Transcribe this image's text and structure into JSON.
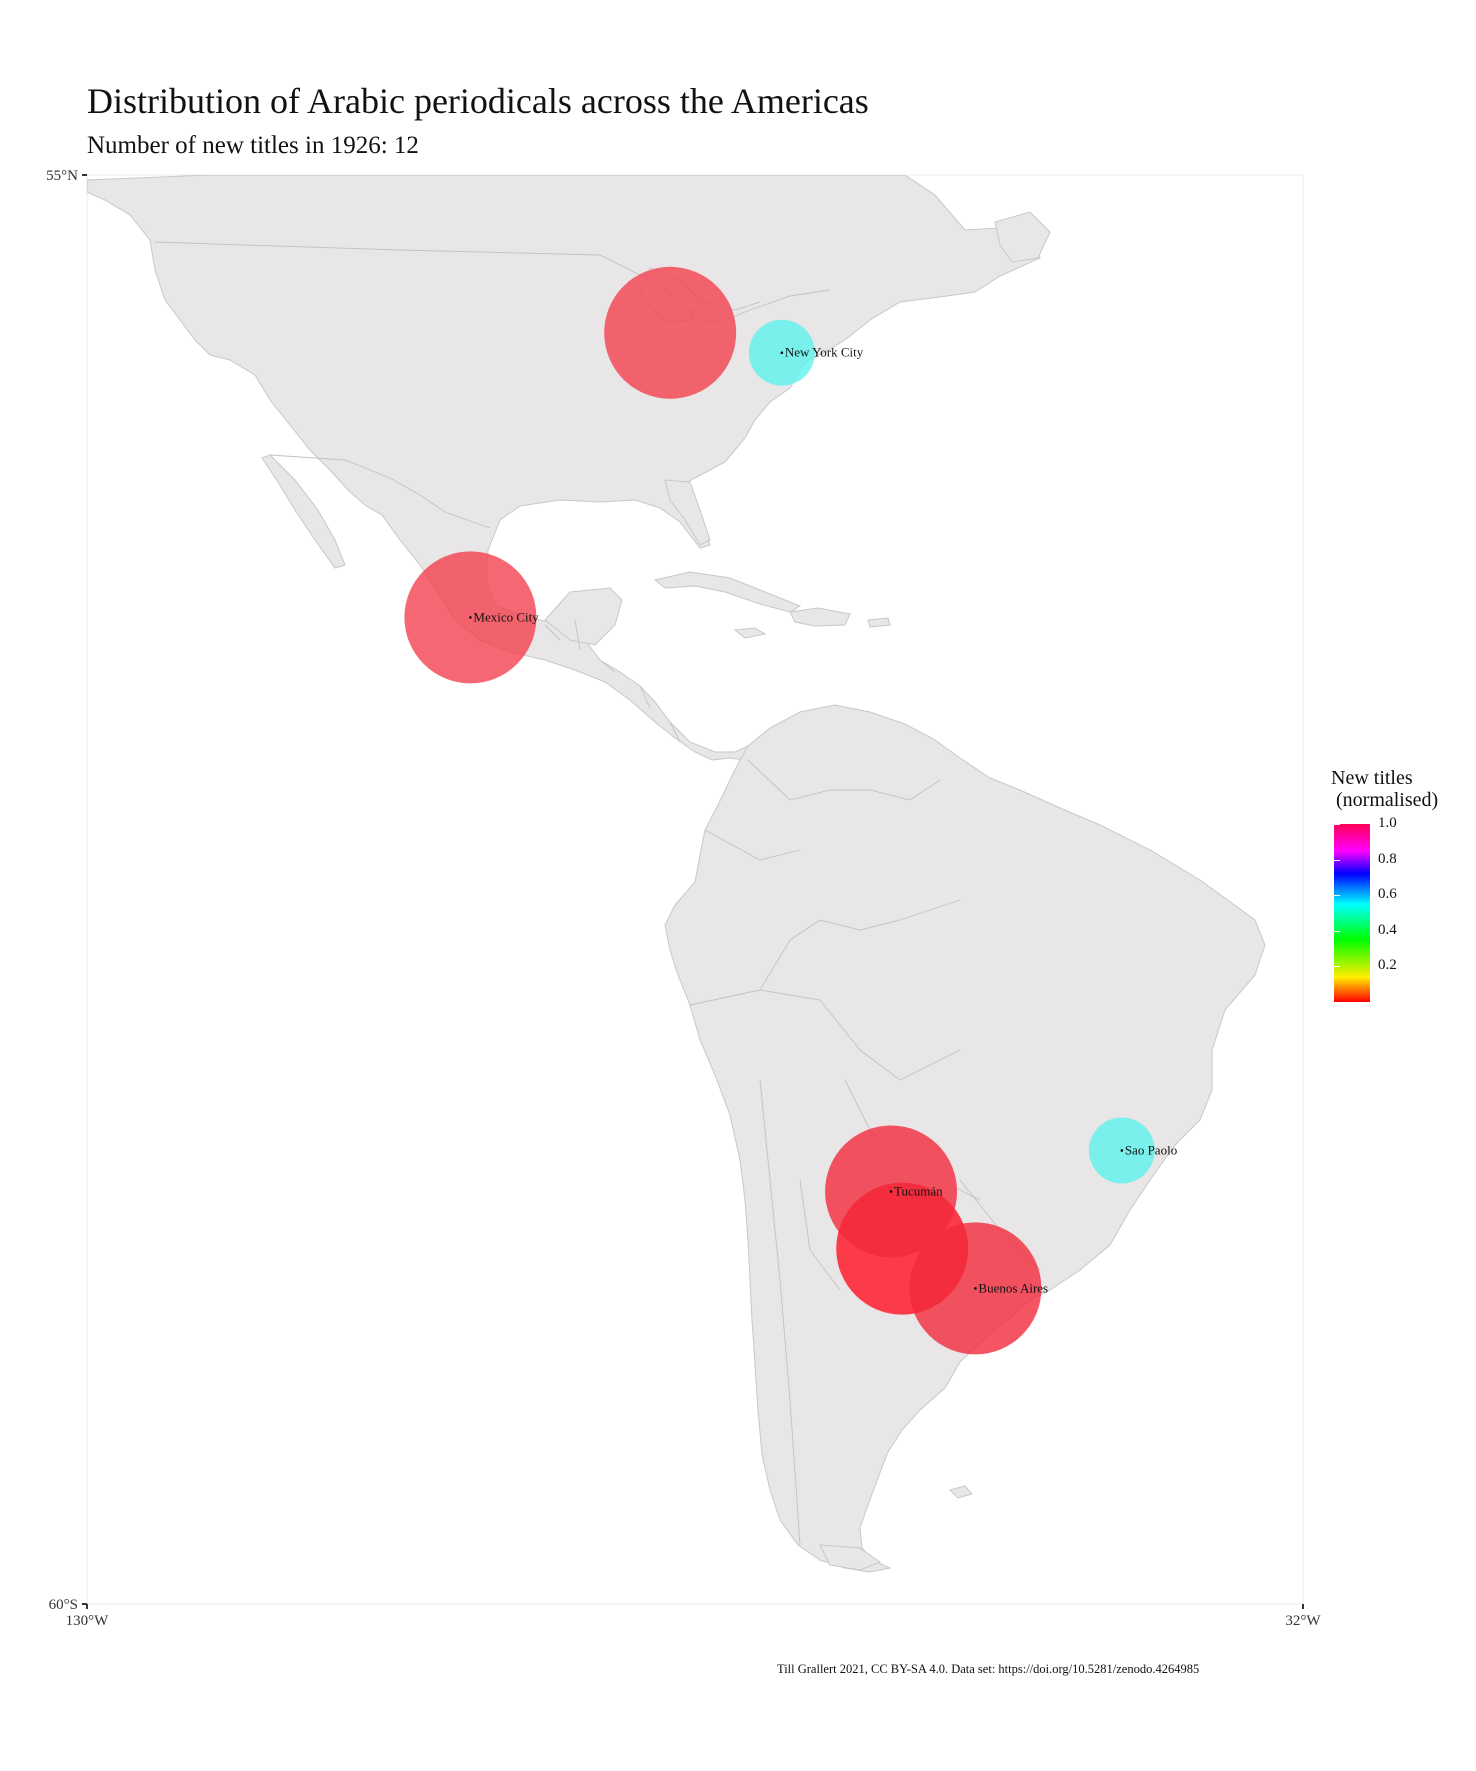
{
  "title": "Distribution of Arabic periodicals across the Americas",
  "subtitle": "Number of new titles in 1926: 12",
  "axes": {
    "y_top": "55°N",
    "y_bottom": "60°S",
    "x_left": "130°W",
    "x_right": "32°W",
    "lon_range": [
      -130,
      -32
    ],
    "lat_range": [
      -60,
      55
    ]
  },
  "legend": {
    "title": "New titles\n (normalised)",
    "ticks": [
      "1.0",
      "0.8",
      "0.6",
      "0.4",
      "0.2"
    ],
    "tick_values": [
      1.0,
      0.8,
      0.6,
      0.4,
      0.2
    ]
  },
  "cities": [
    {
      "name": "New York City",
      "lon": -74.0,
      "lat": 40.7,
      "value": 0.55,
      "color": "#5cf3ec"
    },
    {
      "name": "Mexico City",
      "lon": -99.1,
      "lat": 19.4,
      "value": 1.0,
      "color": "#f2414f"
    },
    {
      "name": "Sao Paolo",
      "lon": -46.6,
      "lat": -23.5,
      "value": 0.55,
      "color": "#5cf3ec"
    },
    {
      "name": "Tucumán",
      "lon": -65.2,
      "lat": -26.8,
      "value": 1.0,
      "color": "#f22b3c"
    },
    {
      "name": "Buenos Aires",
      "lon": -58.4,
      "lat": -34.6,
      "value": 1.0,
      "color": "#f22b3c"
    }
  ],
  "unlabeled_points": [
    {
      "lon": -83.0,
      "lat": 42.3,
      "value": 1.0,
      "color": "#f2414f"
    },
    {
      "lon": -64.3,
      "lat": -31.4,
      "value": 1.0,
      "color": "#ff1020"
    }
  ],
  "caption": "Till Grallert 2021, CC BY-SA 4.0. Data set: https://doi.org/10.5281/zenodo.4264985"
}
